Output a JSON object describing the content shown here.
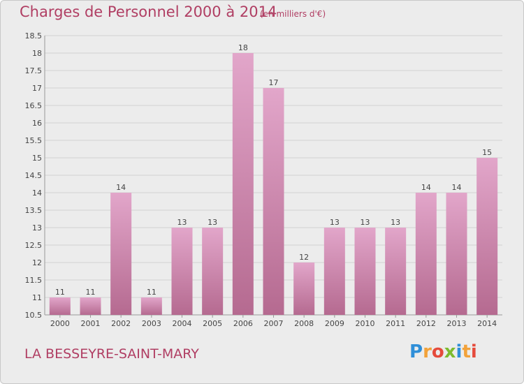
{
  "chart_data": {
    "type": "bar",
    "title": "Charges de Personnel 2000 à 2014",
    "subtitle": "(en milliers d'€)",
    "categories": [
      "2000",
      "2001",
      "2002",
      "2003",
      "2004",
      "2005",
      "2006",
      "2007",
      "2008",
      "2009",
      "2010",
      "2011",
      "2012",
      "2013",
      "2014"
    ],
    "values": [
      11,
      11,
      14,
      11,
      13,
      13,
      18,
      17,
      12,
      13,
      13,
      13,
      14,
      14,
      15
    ],
    "data_labels": [
      "11",
      "11",
      "14",
      "11",
      "13",
      "13",
      "18",
      "17",
      "12",
      "13",
      "13",
      "13",
      "14",
      "14",
      "15"
    ],
    "ylim": [
      10.5,
      18.5
    ],
    "yticks": [
      "10.5",
      "11",
      "11.5",
      "12",
      "12.5",
      "13",
      "13.5",
      "14",
      "14.5",
      "15",
      "15.5",
      "16",
      "16.5",
      "17",
      "17.5",
      "18",
      "18.5"
    ],
    "grid": true,
    "colors": {
      "bar_top": "#e2a6ca",
      "bar_bottom": "#b56a90",
      "text": "#b03e63"
    }
  },
  "footer": {
    "place": "LA BESSEYRE-SAINT-MARY"
  },
  "logo": {
    "text": "Proxiti",
    "colors": [
      "#2f8fd8",
      "#f2a23a",
      "#e54b3c",
      "#7dbb2f",
      "#2f8fd8",
      "#f2a23a",
      "#e54b3c"
    ]
  }
}
